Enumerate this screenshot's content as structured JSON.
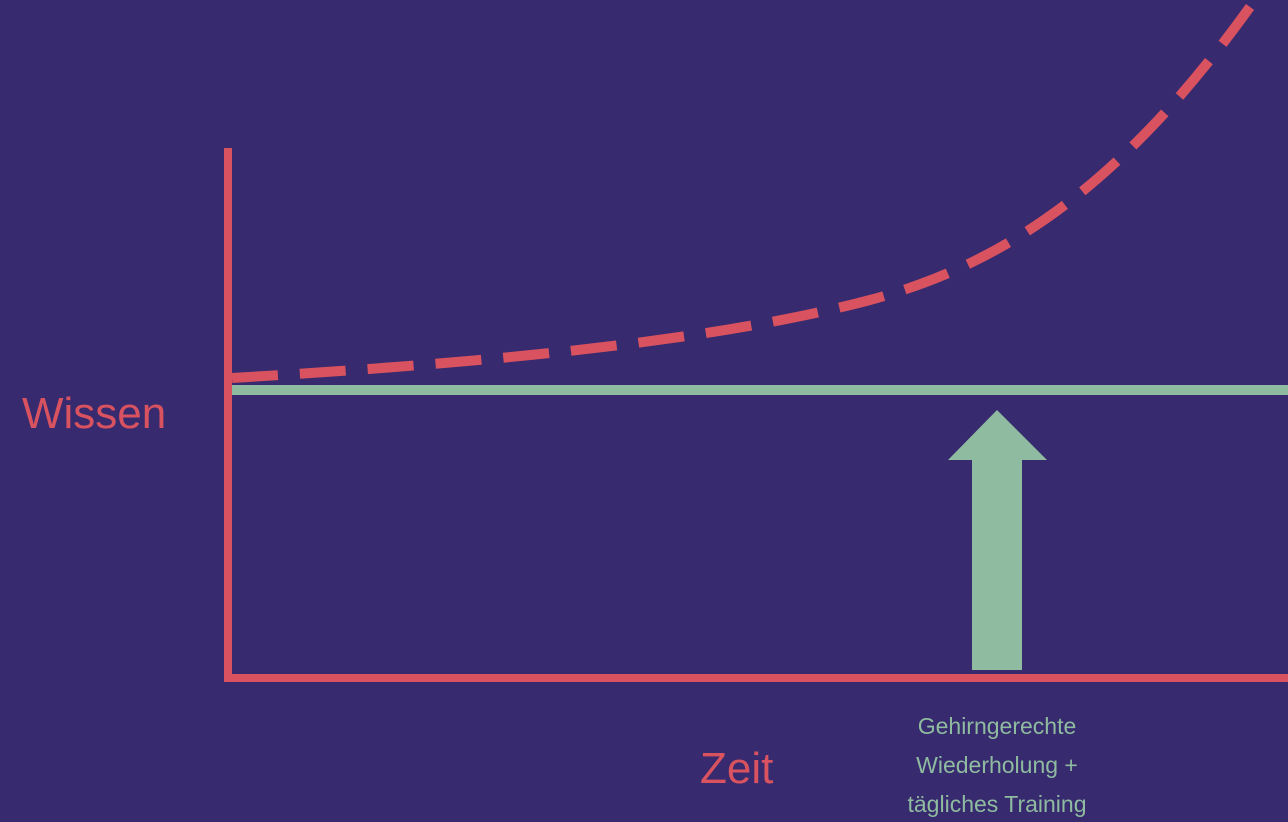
{
  "axis_labels": {
    "y": "Wissen",
    "x": "Zeit"
  },
  "annotation": {
    "lines": [
      "Gehirngerechte",
      "Wiederholung +",
      "tägliches Training"
    ]
  }
}
